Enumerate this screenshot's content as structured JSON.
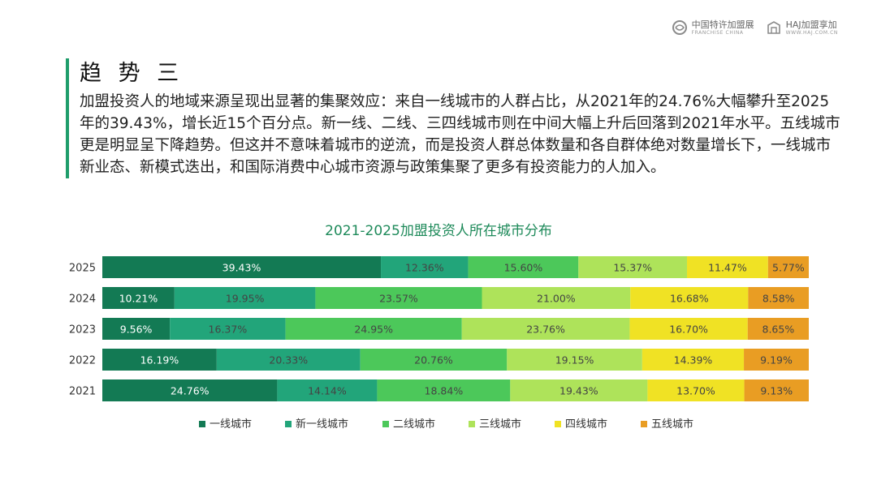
{
  "header": {
    "logo_franchise": {
      "cn": "中国特许加盟展",
      "en": "FRANCHISE CHINA"
    },
    "logo_haj": {
      "cn": "HAJ加盟享加",
      "en": "WWW.HAJ.COM.CN"
    }
  },
  "section": {
    "heading": "趋 势 三",
    "paragraph": "加盟投资人的地域来源呈现出显著的集聚效应：来自一线城市的人群占比，从2021年的24.76%大幅攀升至2025年的39.43%，增长近15个百分点。新一线、二线、三四线城市则在中间大幅上升后回落到2021年水平。五线城市更是明显呈下降趋势。但这并不意味着城市的逆流，而是投资人群总体数量和各自群体绝对数量增长下，一线城市新业态、新模式迭出，和国际消费中心城市资源与政策集聚了更多有投资能力的人加入。"
  },
  "chart_data": {
    "type": "bar",
    "orientation": "horizontal",
    "stacked": true,
    "title": "2021-2025加盟投资人所在城市分布",
    "categories": [
      "2025",
      "2024",
      "2023",
      "2022",
      "2021"
    ],
    "series": [
      {
        "name": "一线城市",
        "color": "#137a54",
        "values": [
          39.43,
          10.21,
          9.56,
          16.19,
          24.76
        ],
        "labels": [
          "39.43%",
          "10.21%",
          "9.56%",
          "16.19%",
          "24.76%"
        ]
      },
      {
        "name": "新一线城市",
        "color": "#22a57a",
        "values": [
          12.36,
          19.95,
          16.37,
          20.33,
          14.14
        ],
        "labels": [
          "12.36%",
          "19.95%",
          "16.37%",
          "20.33%",
          "14.14%"
        ]
      },
      {
        "name": "二线城市",
        "color": "#4cc85a",
        "values": [
          15.6,
          23.57,
          24.95,
          20.76,
          18.84
        ],
        "labels": [
          "15.60%",
          "23.57%",
          "24.95%",
          "20.76%",
          "18.84%"
        ]
      },
      {
        "name": "三线城市",
        "color": "#aee35a",
        "values": [
          15.37,
          21.0,
          23.76,
          19.15,
          19.43
        ],
        "labels": [
          "15.37%",
          "21.00%",
          "23.76%",
          "19.15%",
          "19.43%"
        ]
      },
      {
        "name": "四线城市",
        "color": "#f0e224",
        "values": [
          11.47,
          16.68,
          16.7,
          14.39,
          13.7
        ],
        "labels": [
          "11.47%",
          "16.68%",
          "16.70%",
          "14.39%",
          "13.70%"
        ]
      },
      {
        "name": "五线城市",
        "color": "#e99d23",
        "values": [
          5.77,
          8.58,
          8.65,
          9.19,
          9.13
        ],
        "labels": [
          "5.77%",
          "8.58%",
          "8.65%",
          "9.19%",
          "9.13%"
        ]
      }
    ],
    "label_colors": [
      "#ffffff",
      "#444444",
      "#444444",
      "#444444",
      "#444444",
      "#444444"
    ],
    "xlim": [
      0,
      100
    ],
    "grid": false,
    "legend": "bottom"
  }
}
